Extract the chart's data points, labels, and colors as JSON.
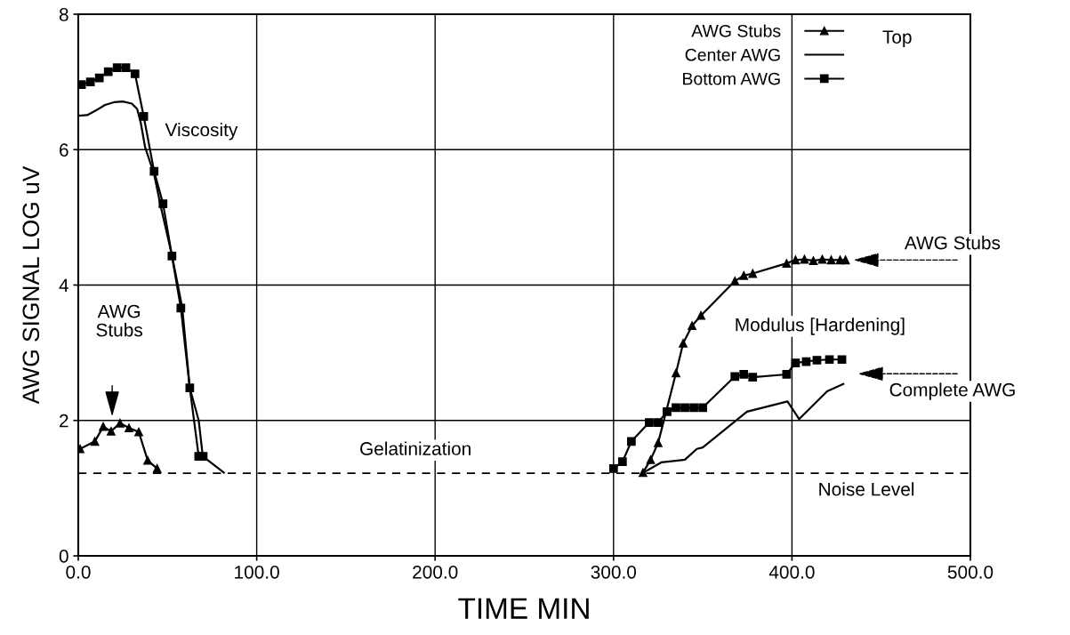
{
  "chart_data": {
    "type": "line",
    "xlabel": "TIME MIN",
    "ylabel": "AWG SIGNAL LOG uV",
    "xlim": [
      0,
      500
    ],
    "ylim": [
      0,
      8
    ],
    "xticks": [
      {
        "value": 0,
        "label": "0.0"
      },
      {
        "value": 100,
        "label": "100.0"
      },
      {
        "value": 200,
        "label": "200.0"
      },
      {
        "value": 300,
        "label": "300.0"
      },
      {
        "value": 400,
        "label": "400.0"
      },
      {
        "value": 500,
        "label": "500.0"
      }
    ],
    "yticks": [
      0,
      2,
      4,
      6,
      8
    ],
    "grid": true,
    "legend": "top right",
    "series": [
      {
        "name": "AWG Stubs",
        "color": "#000000",
        "marker": "triangle",
        "x": [
          1,
          9.3,
          14,
          18.4,
          23.4,
          28.4,
          33.9,
          38.9,
          44.2,
          null,
          316.5,
          320.8,
          325,
          335,
          339,
          344,
          349,
          368,
          373,
          378,
          397,
          402,
          407,
          412,
          417,
          422,
          427,
          430
        ],
        "values": [
          1.58,
          1.69,
          1.91,
          1.84,
          1.96,
          1.89,
          1.83,
          1.41,
          1.29,
          null,
          1.23,
          1.42,
          1.67,
          2.7,
          3.14,
          3.4,
          3.55,
          4.06,
          4.14,
          4.17,
          4.32,
          4.37,
          4.38,
          4.36,
          4.38,
          4.37,
          4.37,
          4.37
        ]
      },
      {
        "name": "Center AWG",
        "color": "#000000",
        "marker": "none",
        "x": [
          0,
          5,
          10,
          15,
          20,
          25,
          30,
          33,
          35,
          37.5,
          42.5,
          45.9,
          52.4,
          55.8,
          58.3,
          62.5,
          67.5,
          69.8,
          81.6,
          null,
          316.7,
          326.7,
          340,
          346.7,
          350,
          374.8,
          397.5,
          404,
          419.7,
          428.8
        ],
        "values": [
          6.5,
          6.51,
          6.58,
          6.66,
          6.7,
          6.71,
          6.68,
          6.6,
          6.4,
          6.03,
          5.64,
          5.2,
          4.45,
          4.0,
          3.66,
          2.48,
          2.0,
          1.47,
          1.23,
          null,
          1.23,
          1.38,
          1.42,
          1.58,
          1.6,
          2.13,
          2.28,
          2.02,
          2.43,
          2.54
        ]
      },
      {
        "name": "Bottom AWG",
        "color": "#000000",
        "marker": "square",
        "x": [
          1.8,
          6.8,
          11.8,
          16.8,
          21.8,
          26.7,
          31.8,
          36.7,
          42.5,
          47.5,
          52.5,
          57.5,
          62.5,
          67.5,
          70,
          null,
          300,
          305,
          310,
          320,
          325,
          330,
          335,
          340,
          345,
          350,
          368,
          373,
          378,
          397,
          402,
          408,
          414,
          421,
          428
        ],
        "values": [
          6.96,
          7.0,
          7.06,
          7.15,
          7.21,
          7.21,
          7.12,
          6.49,
          5.68,
          5.2,
          4.43,
          3.66,
          2.48,
          1.47,
          1.47,
          null,
          1.29,
          1.39,
          1.69,
          1.97,
          1.97,
          2.13,
          2.19,
          2.19,
          2.19,
          2.19,
          2.65,
          2.68,
          2.64,
          2.68,
          2.85,
          2.87,
          2.89,
          2.9,
          2.9
        ]
      }
    ],
    "ref_lines": [
      {
        "axis": "y",
        "value": 1.22,
        "label": "Noise Level",
        "color": "#000000",
        "line_style": "dashed"
      }
    ],
    "annotations": [
      "Viscosity",
      "AWG\nStubs",
      "Gelatinization",
      "Modulus [Hardening]",
      "AWG Stubs",
      "Complete AWG",
      "Top"
    ]
  }
}
